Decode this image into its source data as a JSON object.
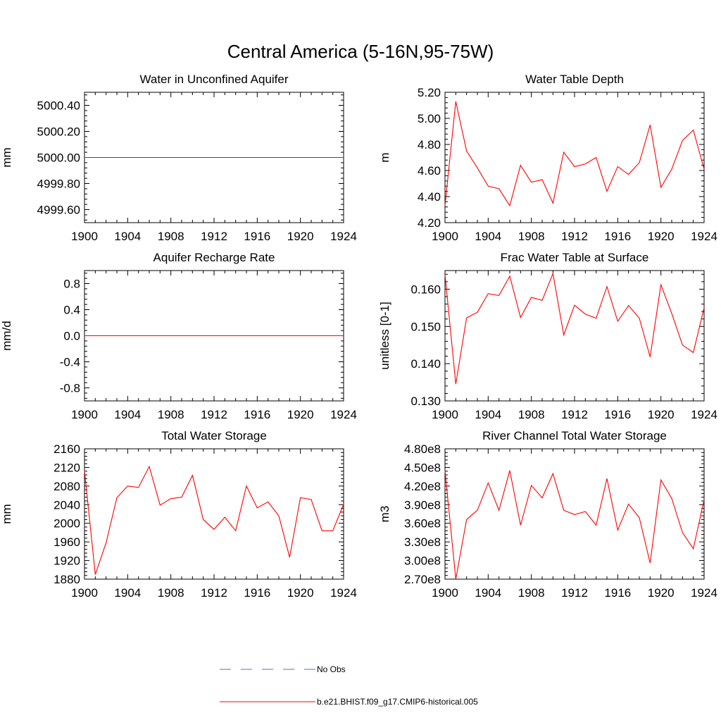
{
  "figure": {
    "title": "Central America (5-16N,95-75W)"
  },
  "legend": {
    "entries": [
      {
        "label": "No Obs",
        "color": "#5a6fb5",
        "style": "dashed"
      },
      {
        "label": "b.e21.BHIST.f09_g17.CMIP6-historical.005",
        "color": "#ff0000",
        "style": "solid"
      }
    ]
  },
  "chart_data": [
    {
      "type": "line",
      "title": "Water in Unconfined Aquifer",
      "ylabel": "mm",
      "xlabel": "",
      "xlim": [
        1900,
        1924
      ],
      "ylim": [
        4999.5,
        5000.5
      ],
      "xticks": [
        1900,
        1904,
        1908,
        1912,
        1916,
        1920,
        1924
      ],
      "xtick_labels": [
        "1900",
        "1904",
        "1908",
        "1912",
        "1916",
        "1920",
        "1924"
      ],
      "yticks": [
        4999.6,
        4999.8,
        5000.0,
        5000.2,
        5000.4
      ],
      "ytick_labels": [
        "4999.60",
        "4999.80",
        "5000.00",
        "5000.20",
        "5000.40"
      ],
      "series": [
        {
          "name": "b.e21.BHIST.f09_g17.CMIP6-historical.005",
          "color": "#ff0000",
          "x": [
            1900,
            1901,
            1902,
            1903,
            1904,
            1905,
            1906,
            1907,
            1908,
            1909,
            1910,
            1911,
            1912,
            1913,
            1914,
            1915,
            1916,
            1917,
            1918,
            1919,
            1920,
            1921,
            1922,
            1923,
            1924
          ],
          "values": [
            5000,
            5000,
            5000,
            5000,
            5000,
            5000,
            5000,
            5000,
            5000,
            5000,
            5000,
            5000,
            5000,
            5000,
            5000,
            5000,
            5000,
            5000,
            5000,
            5000,
            5000,
            5000,
            5000,
            5000,
            5000
          ]
        }
      ]
    },
    {
      "type": "line",
      "title": "Water Table Depth",
      "ylabel": "m",
      "xlabel": "",
      "xlim": [
        1900,
        1924
      ],
      "ylim": [
        4.2,
        5.2
      ],
      "xticks": [
        1900,
        1904,
        1908,
        1912,
        1916,
        1920,
        1924
      ],
      "xtick_labels": [
        "1900",
        "1904",
        "1908",
        "1912",
        "1916",
        "1920",
        "1924"
      ],
      "yticks": [
        4.2,
        4.4,
        4.6,
        4.8,
        5.0,
        5.2
      ],
      "ytick_labels": [
        "4.20",
        "4.40",
        "4.60",
        "4.80",
        "5.00",
        "5.20"
      ],
      "series": [
        {
          "name": "b.e21.BHIST.f09_g17.CMIP6-historical.005",
          "color": "#ff0000",
          "x": [
            1900,
            1901,
            1902,
            1903,
            1904,
            1905,
            1906,
            1907,
            1908,
            1909,
            1910,
            1911,
            1912,
            1913,
            1914,
            1915,
            1916,
            1917,
            1918,
            1919,
            1920,
            1921,
            1922,
            1923,
            1924
          ],
          "values": [
            4.33,
            5.13,
            4.75,
            4.62,
            4.48,
            4.46,
            4.33,
            4.64,
            4.51,
            4.53,
            4.35,
            4.74,
            4.63,
            4.65,
            4.7,
            4.44,
            4.63,
            4.57,
            4.66,
            4.95,
            4.47,
            4.61,
            4.83,
            4.91,
            4.61
          ]
        }
      ]
    },
    {
      "type": "line",
      "title": "Aquifer Recharge Rate",
      "ylabel": "mm/d",
      "xlabel": "",
      "xlim": [
        1900,
        1924
      ],
      "ylim": [
        -1.0,
        1.0
      ],
      "xticks": [
        1900,
        1904,
        1908,
        1912,
        1916,
        1920,
        1924
      ],
      "xtick_labels": [
        "1900",
        "1904",
        "1908",
        "1912",
        "1916",
        "1920",
        "1924"
      ],
      "yticks": [
        -0.8,
        -0.4,
        0.0,
        0.4,
        0.8
      ],
      "ytick_labels": [
        "-0.8",
        "-0.4",
        "0.0",
        "0.4",
        "0.8"
      ],
      "series": [
        {
          "name": "b.e21.BHIST.f09_g17.CMIP6-historical.005",
          "color": "#ff0000",
          "x": [
            1900,
            1901,
            1902,
            1903,
            1904,
            1905,
            1906,
            1907,
            1908,
            1909,
            1910,
            1911,
            1912,
            1913,
            1914,
            1915,
            1916,
            1917,
            1918,
            1919,
            1920,
            1921,
            1922,
            1923,
            1924
          ],
          "values": [
            0,
            0,
            0,
            0,
            0,
            0,
            0,
            0,
            0,
            0,
            0,
            0,
            0,
            0,
            0,
            0,
            0,
            0,
            0,
            0,
            0,
            0,
            0,
            0,
            0
          ]
        }
      ]
    },
    {
      "type": "line",
      "title": "Frac Water Table at Surface",
      "ylabel": "unitless [0-1]",
      "xlabel": "",
      "xlim": [
        1900,
        1924
      ],
      "ylim": [
        0.13,
        0.165
      ],
      "xticks": [
        1900,
        1904,
        1908,
        1912,
        1916,
        1920,
        1924
      ],
      "xtick_labels": [
        "1900",
        "1904",
        "1908",
        "1912",
        "1916",
        "1920",
        "1924"
      ],
      "yticks": [
        0.13,
        0.14,
        0.15,
        0.16
      ],
      "ytick_labels": [
        "0.130",
        "0.140",
        "0.150",
        "0.160"
      ],
      "series": [
        {
          "name": "b.e21.BHIST.f09_g17.CMIP6-historical.005",
          "color": "#ff0000",
          "x": [
            1900,
            1901,
            1902,
            1903,
            1904,
            1905,
            1906,
            1907,
            1908,
            1909,
            1910,
            1911,
            1912,
            1913,
            1914,
            1915,
            1916,
            1917,
            1918,
            1919,
            1920,
            1921,
            1922,
            1923,
            1924
          ],
          "values": [
            0.164,
            0.1345,
            0.1523,
            0.1538,
            0.1588,
            0.1583,
            0.1635,
            0.1524,
            0.1578,
            0.157,
            0.1642,
            0.1477,
            0.1557,
            0.1533,
            0.1522,
            0.1607,
            0.1514,
            0.1556,
            0.1522,
            0.1418,
            0.1612,
            0.1535,
            0.145,
            0.143,
            0.155
          ]
        }
      ]
    },
    {
      "type": "line",
      "title": "Total Water Storage",
      "ylabel": "mm",
      "xlabel": "",
      "xlim": [
        1900,
        1924
      ],
      "ylim": [
        1880,
        2160
      ],
      "xticks": [
        1900,
        1904,
        1908,
        1912,
        1916,
        1920,
        1924
      ],
      "xtick_labels": [
        "1900",
        "1904",
        "1908",
        "1912",
        "1916",
        "1920",
        "1924"
      ],
      "yticks": [
        1880,
        1920,
        1960,
        2000,
        2040,
        2080,
        2120,
        2160
      ],
      "ytick_labels": [
        "1880",
        "1920",
        "1960",
        "2000",
        "2040",
        "2080",
        "2120",
        "2160"
      ],
      "series": [
        {
          "name": "b.e21.BHIST.f09_g17.CMIP6-historical.005",
          "color": "#ff0000",
          "x": [
            1900,
            1901,
            1902,
            1903,
            1904,
            1905,
            1906,
            1907,
            1908,
            1909,
            1910,
            1911,
            1912,
            1913,
            1914,
            1915,
            1916,
            1917,
            1918,
            1919,
            1920,
            1921,
            1922,
            1923,
            1924
          ],
          "values": [
            2113,
            1890,
            1958,
            2055,
            2080,
            2077,
            2122,
            2039,
            2053,
            2056,
            2103,
            2008,
            1987,
            2013,
            1984,
            2080,
            2033,
            2046,
            2016,
            1927,
            2055,
            2051,
            1984,
            1984,
            2041
          ]
        }
      ]
    },
    {
      "type": "line",
      "title": "River Channel Total Water Storage",
      "ylabel": "m3",
      "xlabel": "",
      "xlim": [
        1900,
        1924
      ],
      "ylim": [
        270000000,
        480000000
      ],
      "xticks": [
        1900,
        1904,
        1908,
        1912,
        1916,
        1920,
        1924
      ],
      "xtick_labels": [
        "1900",
        "1904",
        "1908",
        "1912",
        "1916",
        "1920",
        "1924"
      ],
      "yticks": [
        270000000,
        300000000,
        330000000,
        360000000,
        390000000,
        420000000,
        450000000,
        480000000
      ],
      "ytick_labels": [
        "2.70e8",
        "3.00e8",
        "3.30e8",
        "3.60e8",
        "3.90e8",
        "4.20e8",
        "4.50e8",
        "4.80e8"
      ],
      "series": [
        {
          "name": "b.e21.BHIST.f09_g17.CMIP6-historical.005",
          "color": "#ff0000",
          "x": [
            1900,
            1901,
            1902,
            1903,
            1904,
            1905,
            1906,
            1907,
            1908,
            1909,
            1910,
            1911,
            1912,
            1913,
            1914,
            1915,
            1916,
            1917,
            1918,
            1919,
            1920,
            1921,
            1922,
            1923,
            1924
          ],
          "values": [
            445000000,
            270000000,
            366000000,
            381000000,
            425000000,
            381000000,
            445000000,
            357000000,
            421000000,
            401000000,
            440000000,
            381000000,
            374000000,
            379000000,
            357000000,
            432000000,
            349000000,
            391000000,
            369000000,
            296000000,
            430000000,
            400000000,
            345000000,
            319000000,
            398000000
          ]
        }
      ]
    }
  ]
}
